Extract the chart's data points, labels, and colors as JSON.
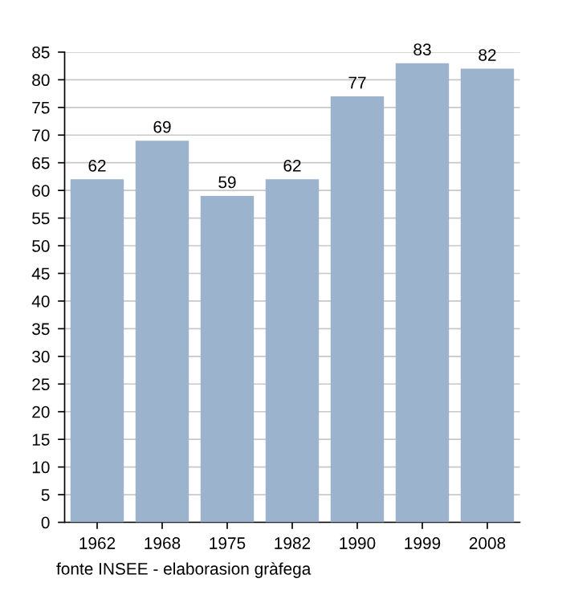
{
  "chart_data": {
    "type": "bar",
    "categories": [
      "1962",
      "1968",
      "1975",
      "1982",
      "1990",
      "1999",
      "2008"
    ],
    "values": [
      62,
      69,
      59,
      62,
      77,
      83,
      82
    ],
    "color": "#9bb3cc",
    "data_labels": true,
    "ylim": [
      0,
      85
    ],
    "yticks": [
      0,
      5,
      10,
      15,
      20,
      25,
      30,
      35,
      40,
      45,
      50,
      55,
      60,
      65,
      70,
      75,
      80,
      85
    ],
    "grid": "y",
    "annotations": [
      "fonte INSEE - elaborasion gràfega"
    ]
  }
}
